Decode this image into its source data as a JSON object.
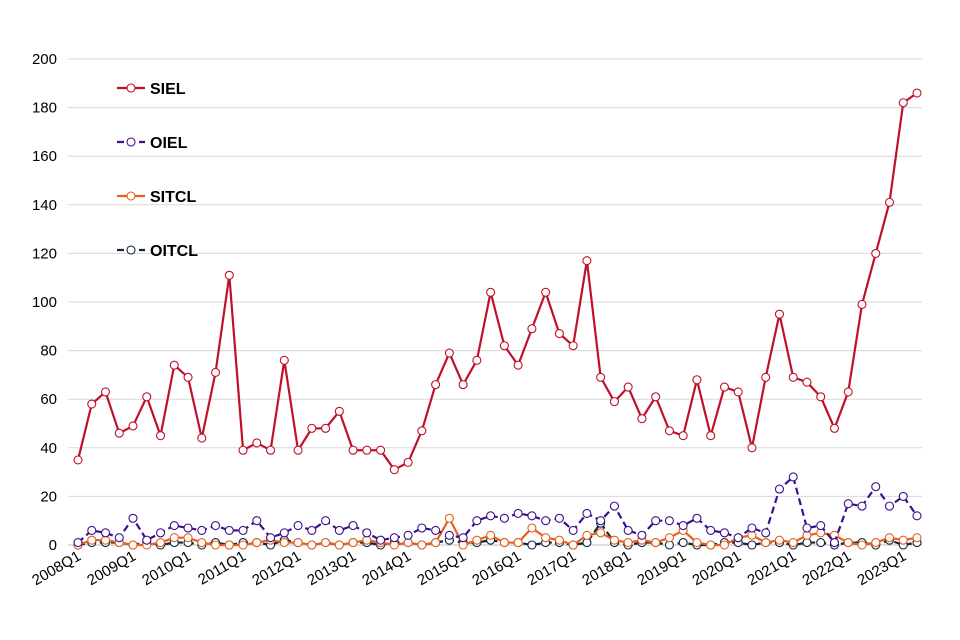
{
  "chart_data": {
    "type": "line",
    "categories": [
      "2008Q1",
      null,
      null,
      null,
      "2009Q1",
      null,
      null,
      null,
      "2010Q1",
      null,
      null,
      null,
      "2011Q1",
      null,
      null,
      null,
      "2012Q1",
      null,
      null,
      null,
      "2013Q1",
      null,
      null,
      null,
      "2014Q1",
      null,
      null,
      null,
      "2015Q1",
      null,
      null,
      null,
      "2016Q1",
      null,
      null,
      null,
      "2017Q1",
      null,
      null,
      null,
      "2018Q1",
      null,
      null,
      null,
      "2019Q1",
      null,
      null,
      null,
      "2020Q1",
      null,
      null,
      null,
      "2021Q1",
      null,
      null,
      null,
      "2022Q1",
      null,
      null,
      null,
      "2023Q1",
      null
    ],
    "series": [
      {
        "name": "SIEL",
        "color": "#c0102a",
        "linestyle": "solid",
        "values": [
          35,
          58,
          63,
          46,
          49,
          61,
          45,
          74,
          69,
          44,
          71,
          111,
          39,
          42,
          39,
          76,
          39,
          48,
          48,
          55,
          39,
          39,
          39,
          31,
          34,
          47,
          66,
          79,
          66,
          76,
          104,
          82,
          74,
          89,
          104,
          87,
          82,
          117,
          69,
          59,
          65,
          52,
          61,
          47,
          45,
          68,
          45,
          65,
          63,
          40,
          69,
          95,
          69,
          67,
          61,
          48,
          63,
          99,
          120,
          141,
          182,
          186
        ]
      },
      {
        "name": "OIEL",
        "color": "#3d0f8c",
        "linestyle": "dashed",
        "values": [
          1,
          6,
          5,
          3,
          11,
          2,
          5,
          8,
          7,
          6,
          8,
          6,
          6,
          10,
          3,
          5,
          8,
          6,
          10,
          6,
          8,
          5,
          2,
          3,
          4,
          7,
          6,
          4,
          3,
          10,
          12,
          11,
          13,
          12,
          10,
          11,
          6,
          13,
          10,
          16,
          6,
          4,
          10,
          10,
          8,
          11,
          6,
          5,
          3,
          7,
          5,
          23,
          28,
          7,
          8,
          1,
          17,
          16,
          24,
          16,
          20,
          12
        ]
      },
      {
        "name": "SITCL",
        "color": "#e8601c",
        "linestyle": "solid",
        "values": [
          0,
          2,
          2,
          1,
          0,
          0,
          1,
          3,
          3,
          1,
          0,
          0,
          0,
          1,
          2,
          1,
          1,
          0,
          1,
          0,
          1,
          2,
          1,
          0,
          1,
          0,
          1,
          11,
          0,
          2,
          4,
          1,
          1,
          7,
          3,
          2,
          0,
          4,
          5,
          2,
          1,
          2,
          1,
          3,
          6,
          1,
          0,
          0,
          3,
          4,
          1,
          2,
          1,
          4,
          5,
          4,
          1,
          0,
          1,
          3,
          2,
          3
        ]
      },
      {
        "name": "OITCL",
        "color": "#10243e",
        "linestyle": "dashed",
        "values": [
          0,
          1,
          1,
          1,
          0,
          1,
          0,
          1,
          1,
          0,
          1,
          0,
          1,
          1,
          0,
          2,
          1,
          0,
          1,
          0,
          1,
          1,
          0,
          1,
          1,
          0,
          1,
          2,
          1,
          1,
          2,
          1,
          1,
          0,
          1,
          1,
          0,
          1,
          9,
          1,
          0,
          1,
          1,
          0,
          1,
          0,
          0,
          1,
          1,
          0,
          1,
          1,
          0,
          1,
          1,
          0,
          1,
          1,
          0,
          2,
          0,
          1
        ]
      }
    ],
    "ylim": [
      0,
      200
    ],
    "yticks": [
      0,
      20,
      40,
      60,
      80,
      100,
      120,
      140,
      160,
      180,
      200
    ],
    "grid": true,
    "legend": "upper left"
  }
}
